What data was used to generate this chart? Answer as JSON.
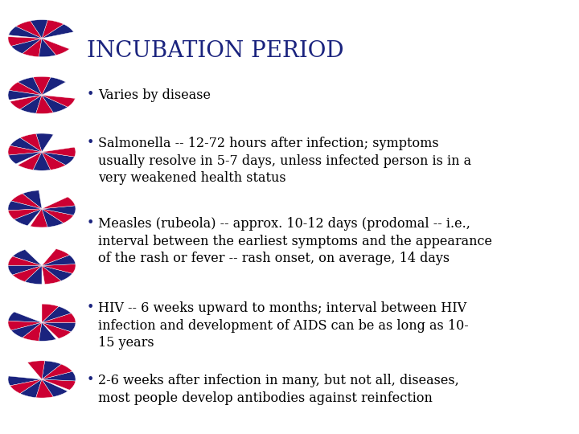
{
  "title": "INCUBATION PERIOD",
  "title_color": "#1A237E",
  "title_fontsize": 20,
  "background_color": "#FFFFFF",
  "text_color": "#000000",
  "bullet_color": "#1A237E",
  "bullet_points": [
    "Varies by disease",
    "Salmonella -- 12-72 hours after infection; symptoms\nusually resolve in 5-7 days, unless infected person is in a\nvery weakened health status",
    "Measles (rubeola) -- approx. 10-12 days (prodomal -- i.e.,\ninterval between the earliest symptoms and the appearance\nof the rash or fever -- rash onset, on average, 14 days",
    "HIV -- 6 weeks upward to months; interval between HIV\ninfection and development of AIDS can be as long as 10-\n15 years",
    "2-6 weeks after infection in many, but not all, diseases,\nmost people develop antibodies against reinfection"
  ],
  "text_fontsize": 11.5,
  "dna_colors_blue": "#1A237E",
  "dna_colors_red": "#CC0033"
}
